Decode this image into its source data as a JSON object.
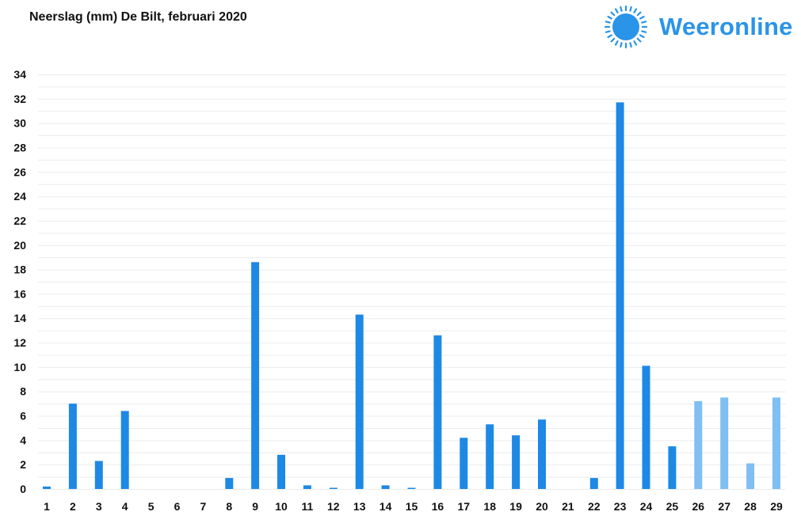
{
  "brand": {
    "name": "Weeronline",
    "color": "#2a94e8"
  },
  "chart_data": {
    "type": "bar",
    "title": "Neerslag (mm) De Bilt, februari 2020",
    "xlabel": "",
    "ylabel": "",
    "categories": [
      "1",
      "2",
      "3",
      "4",
      "5",
      "6",
      "7",
      "8",
      "9",
      "10",
      "11",
      "12",
      "13",
      "14",
      "15",
      "16",
      "17",
      "18",
      "19",
      "20",
      "21",
      "22",
      "23",
      "24",
      "25",
      "26",
      "27",
      "28",
      "29"
    ],
    "values": [
      0.2,
      7.0,
      2.3,
      6.4,
      0,
      0,
      0,
      0.9,
      18.6,
      2.8,
      0.3,
      0.1,
      14.3,
      0.3,
      0.1,
      12.6,
      4.2,
      5.3,
      4.4,
      5.7,
      0,
      0.9,
      31.7,
      10.1,
      3.5,
      7.2,
      7.5,
      2.1,
      7.5
    ],
    "bar_colors": [
      "#1e88e5",
      "#1e88e5",
      "#1e88e5",
      "#1e88e5",
      "#1e88e5",
      "#1e88e5",
      "#1e88e5",
      "#1e88e5",
      "#1e88e5",
      "#1e88e5",
      "#1e88e5",
      "#1e88e5",
      "#1e88e5",
      "#1e88e5",
      "#1e88e5",
      "#1e88e5",
      "#1e88e5",
      "#1e88e5",
      "#1e88e5",
      "#1e88e5",
      "#1e88e5",
      "#1e88e5",
      "#1e88e5",
      "#1e88e5",
      "#1e88e5",
      "#7fbff2",
      "#7fbff2",
      "#7fbff2",
      "#7fbff2"
    ],
    "yticks": [
      0,
      2,
      4,
      6,
      8,
      10,
      12,
      14,
      16,
      18,
      20,
      22,
      24,
      26,
      28,
      30,
      32,
      34
    ],
    "ylim": [
      0,
      34
    ],
    "grid": true,
    "legend": "none"
  }
}
